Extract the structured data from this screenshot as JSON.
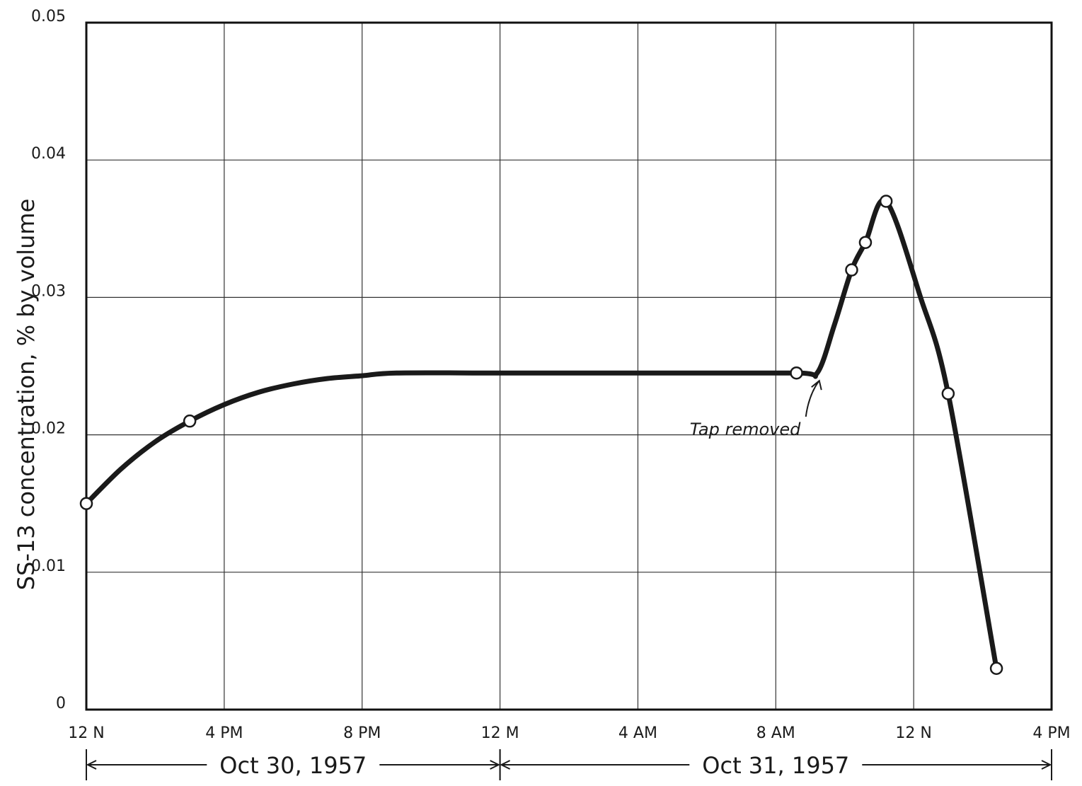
{
  "chart_data": {
    "type": "line",
    "title": "",
    "xlabel": "",
    "ylabel": "SS-13 concentration, % by volume",
    "x_unit": "hours from 12 noon, Oct 30, 1957",
    "xlim": [
      0,
      28
    ],
    "ylim": [
      0,
      0.05
    ],
    "grid": true,
    "x_ticks": [
      {
        "value": 0,
        "label": "12 N"
      },
      {
        "value": 4,
        "label": "4 PM"
      },
      {
        "value": 8,
        "label": "8 PM"
      },
      {
        "value": 12,
        "label": "12 M"
      },
      {
        "value": 16,
        "label": "4 AM"
      },
      {
        "value": 20,
        "label": "8 AM"
      },
      {
        "value": 24,
        "label": "12 N"
      },
      {
        "value": 28,
        "label": "4 PM"
      }
    ],
    "y_ticks": [
      {
        "value": 0,
        "label": "0"
      },
      {
        "value": 0.01,
        "label": "0.01"
      },
      {
        "value": 0.02,
        "label": "0.02"
      },
      {
        "value": 0.03,
        "label": "0.03"
      },
      {
        "value": 0.04,
        "label": "0.04"
      },
      {
        "value": 0.05,
        "label": "0.05"
      }
    ],
    "date_ranges": [
      {
        "label": "Oct 30, 1957",
        "from": 0,
        "to": 12
      },
      {
        "label": "Oct 31, 1957",
        "from": 12,
        "to": 28
      }
    ],
    "points": [
      {
        "x": 0,
        "y": 0.015
      },
      {
        "x": 3.0,
        "y": 0.021
      },
      {
        "x": 20.6,
        "y": 0.0245
      },
      {
        "x": 22.2,
        "y": 0.032
      },
      {
        "x": 22.6,
        "y": 0.034
      },
      {
        "x": 23.2,
        "y": 0.037
      },
      {
        "x": 25.0,
        "y": 0.023
      },
      {
        "x": 26.4,
        "y": 0.003
      }
    ],
    "curve": [
      [
        0,
        0.015
      ],
      [
        1,
        0.0175
      ],
      [
        2,
        0.0195
      ],
      [
        3,
        0.021
      ],
      [
        4,
        0.0222
      ],
      [
        5,
        0.0231
      ],
      [
        6,
        0.0237
      ],
      [
        7,
        0.0241
      ],
      [
        8,
        0.0243
      ],
      [
        9,
        0.0245
      ],
      [
        12,
        0.0245
      ],
      [
        16,
        0.0245
      ],
      [
        20.6,
        0.0245
      ],
      [
        21.2,
        0.0245
      ],
      [
        21.7,
        0.028
      ],
      [
        22.2,
        0.032
      ],
      [
        22.6,
        0.034
      ],
      [
        23.2,
        0.037
      ],
      [
        24.2,
        0.03
      ],
      [
        25.0,
        0.023
      ],
      [
        26.4,
        0.003
      ]
    ],
    "annotations": [
      {
        "text": "Tap removed",
        "x": 21.2,
        "y": 0.0245
      }
    ]
  }
}
